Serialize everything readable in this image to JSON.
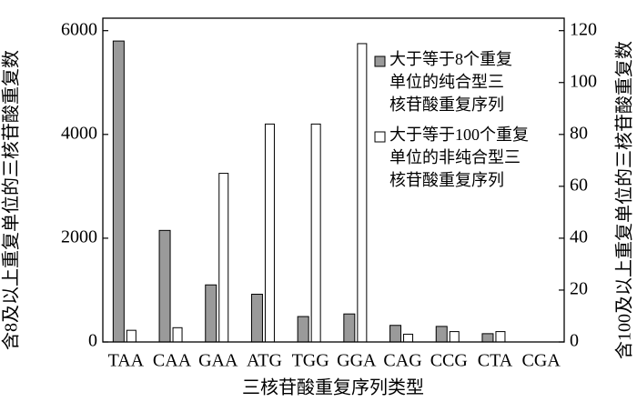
{
  "chart_data": {
    "type": "bar",
    "x_label": "三核苷酸重复序列类型",
    "y_label": "含8及以上重复单位的三核苷酸重复数",
    "y2_label": "含100及以上重复单位的三核苷酸重复数",
    "categories": [
      "TAA",
      "CAA",
      "GAA",
      "ATG",
      "TGG",
      "GGA",
      "CAG",
      "CCG",
      "CTA",
      "CGA"
    ],
    "series": [
      {
        "name": "大于等于8个重复\n单位的纯合型三\n核苷酸重复序列",
        "color": "#9a9a9a",
        "values": [
          5800,
          2150,
          1100,
          920,
          490,
          540,
          320,
          300,
          160,
          0
        ]
      },
      {
        "name": "大于等于100个重复\n单位的非纯合型三\n核苷酸重复序列",
        "color": "#ffffff",
        "axis": "y2",
        "values": [
          4.5,
          5.5,
          65,
          84,
          84,
          115,
          3,
          4,
          4,
          0
        ]
      }
    ],
    "ylim": [
      0,
      6240
    ],
    "yticks": [
      0,
      2000,
      4000,
      6000
    ],
    "y2lim": [
      0,
      124.8
    ],
    "y2ticks": [
      0,
      20,
      40,
      60,
      80,
      100,
      120
    ],
    "legend": "upper right"
  }
}
